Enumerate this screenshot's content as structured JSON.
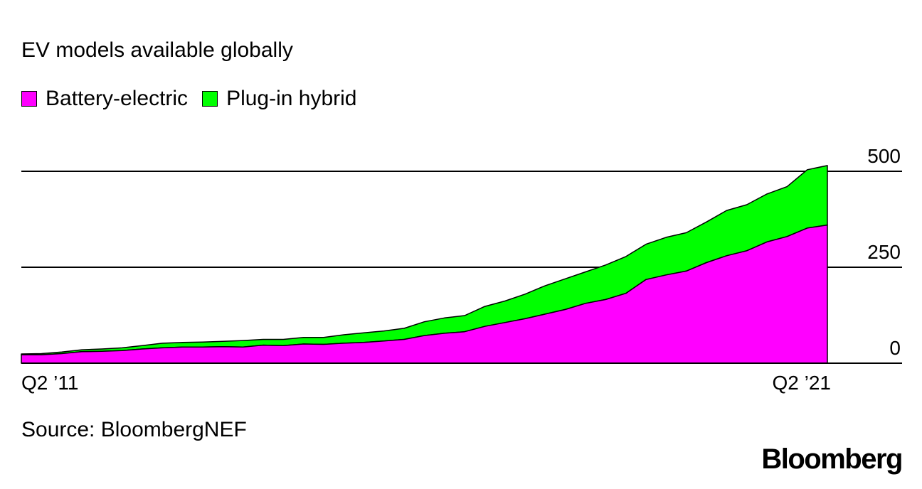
{
  "title": "EV models available globally",
  "legend": [
    {
      "label": "Battery-electric",
      "color": "#ff00ff"
    },
    {
      "label": "Plug-in hybrid",
      "color": "#00ff00"
    }
  ],
  "source": "Source: BloombergNEF",
  "logo": "Bloomberg",
  "chart_data": {
    "type": "area",
    "stacked": true,
    "x": [
      "Q2 '11",
      "Q3 '11",
      "Q4 '11",
      "Q1 '12",
      "Q2 '12",
      "Q3 '12",
      "Q4 '12",
      "Q1 '13",
      "Q2 '13",
      "Q3 '13",
      "Q4 '13",
      "Q1 '14",
      "Q2 '14",
      "Q3 '14",
      "Q4 '14",
      "Q1 '15",
      "Q2 '15",
      "Q3 '15",
      "Q4 '15",
      "Q1 '16",
      "Q2 '16",
      "Q3 '16",
      "Q4 '16",
      "Q1 '17",
      "Q2 '17",
      "Q3 '17",
      "Q4 '17",
      "Q1 '18",
      "Q2 '18",
      "Q3 '18",
      "Q4 '18",
      "Q1 '19",
      "Q2 '19",
      "Q3 '19",
      "Q4 '19",
      "Q1 '20",
      "Q2 '20",
      "Q3 '20",
      "Q4 '20",
      "Q1 '21",
      "Q2 '21"
    ],
    "series": [
      {
        "name": "Battery-electric",
        "color": "#ff00ff",
        "values": [
          22,
          22,
          25,
          30,
          31,
          33,
          37,
          40,
          42,
          42,
          43,
          42,
          47,
          46,
          50,
          49,
          52,
          54,
          58,
          62,
          72,
          78,
          82,
          96,
          106,
          116,
          128,
          140,
          156,
          166,
          182,
          218,
          230,
          240,
          262,
          280,
          293,
          316,
          330,
          352,
          360
        ]
      },
      {
        "name": "Plug-in hybrid",
        "color": "#00ff00",
        "values": [
          2,
          3,
          4,
          5,
          6,
          7,
          9,
          12,
          12,
          13,
          14,
          17,
          15,
          16,
          17,
          18,
          22,
          25,
          26,
          29,
          36,
          40,
          42,
          52,
          56,
          64,
          74,
          80,
          82,
          90,
          96,
          92,
          98,
          100,
          106,
          118,
          120,
          125,
          130,
          152,
          155
        ]
      }
    ],
    "x_tick_labels": [
      "Q2 ’11",
      "Q2 ’21"
    ],
    "y_ticks": [
      0,
      250,
      500
    ],
    "ylim": [
      0,
      500
    ]
  }
}
